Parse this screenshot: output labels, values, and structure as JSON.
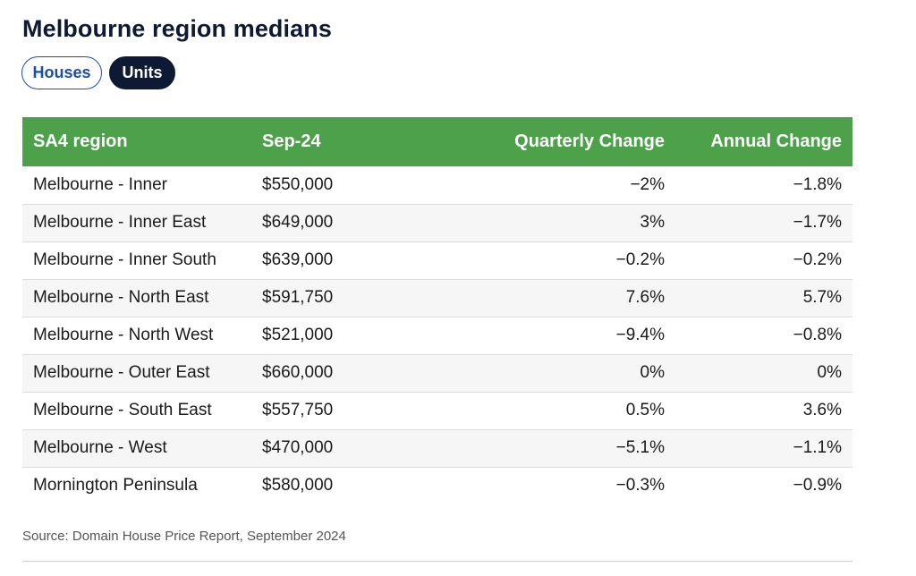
{
  "page": {
    "title": "Melbourne region medians",
    "source": "Source: Domain House Price Report, September 2024"
  },
  "toggles": [
    {
      "label": "Houses",
      "active": false
    },
    {
      "label": "Units",
      "active": true
    }
  ],
  "colors": {
    "header_bg": "#4ca14a",
    "active_toggle": "#0e1a33",
    "inactive_toggle_border": "#1e4ea8"
  },
  "table": {
    "headers": {
      "region": "SA4 region",
      "price": "Sep-24",
      "quarterly": "Quarterly Change",
      "annual": "Annual Change"
    },
    "rows": [
      {
        "region": "Melbourne - Inner",
        "price": "$550,000",
        "quarterly": "−2%",
        "annual": "−1.8%"
      },
      {
        "region": "Melbourne - Inner East",
        "price": "$649,000",
        "quarterly": "3%",
        "annual": "−1.7%"
      },
      {
        "region": "Melbourne - Inner South",
        "price": "$639,000",
        "quarterly": "−0.2%",
        "annual": "−0.2%"
      },
      {
        "region": "Melbourne - North East",
        "price": "$591,750",
        "quarterly": "7.6%",
        "annual": "5.7%"
      },
      {
        "region": "Melbourne - North West",
        "price": "$521,000",
        "quarterly": "−9.4%",
        "annual": "−0.8%"
      },
      {
        "region": "Melbourne - Outer East",
        "price": "$660,000",
        "quarterly": "0%",
        "annual": "0%"
      },
      {
        "region": "Melbourne - South East",
        "price": "$557,750",
        "quarterly": "0.5%",
        "annual": "3.6%"
      },
      {
        "region": "Melbourne - West",
        "price": "$470,000",
        "quarterly": "−5.1%",
        "annual": "−1.1%"
      },
      {
        "region": "Mornington Peninsula",
        "price": "$580,000",
        "quarterly": "−0.3%",
        "annual": "−0.9%"
      }
    ]
  }
}
